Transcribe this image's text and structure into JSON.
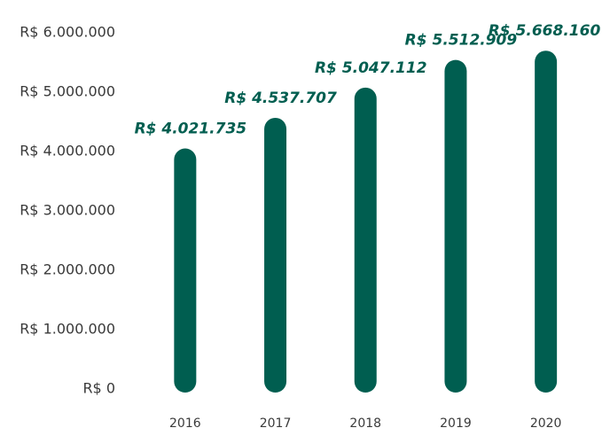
{
  "chart_data": {
    "type": "bar",
    "categories": [
      "2016",
      "2017",
      "2018",
      "2019",
      "2020"
    ],
    "values": [
      4021735,
      4537707,
      5047112,
      5512909,
      5668160
    ],
    "value_labels": [
      "R$ 4.021.735",
      "R$ 4.537.707",
      "R$ 5.047.112",
      "R$ 5.512.909",
      "R$ 5.668.160"
    ],
    "color": "#005e50",
    "ylim": [
      0,
      6000000
    ],
    "yticks": [
      {
        "value": 0,
        "label": "R$ 0"
      },
      {
        "value": 1000000,
        "label": "R$ 1.000.000"
      },
      {
        "value": 2000000,
        "label": "R$ 2.000.000"
      },
      {
        "value": 3000000,
        "label": "R$ 3.000.000"
      },
      {
        "value": 4000000,
        "label": "R$ 4.000.000"
      },
      {
        "value": 5000000,
        "label": "R$ 5.000.000"
      },
      {
        "value": 6000000,
        "label": "R$ 6.000.000"
      }
    ],
    "grid": false
  }
}
